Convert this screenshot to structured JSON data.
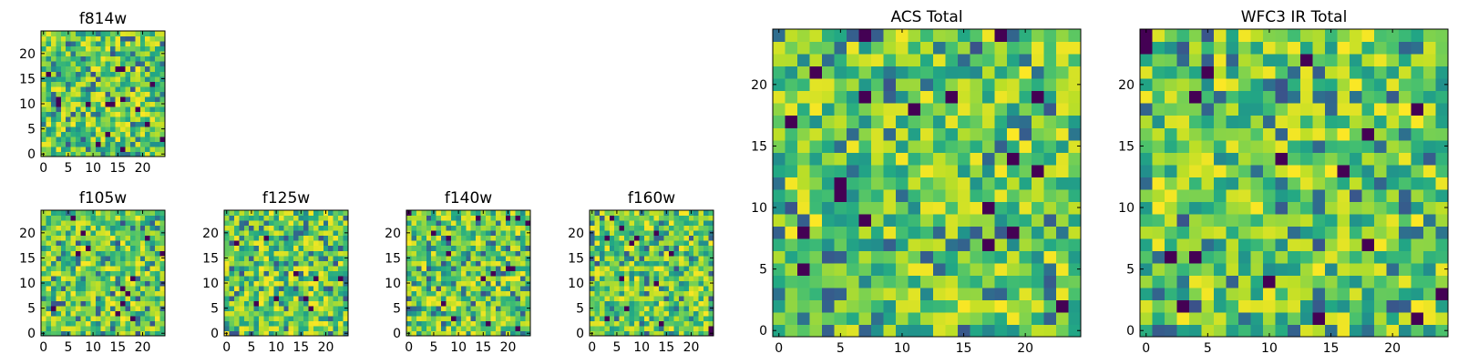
{
  "colormap": "viridis",
  "colors": {
    "axis": "#000000",
    "background": "#ffffff"
  },
  "chart_data": [
    {
      "id": "f814w",
      "type": "heatmap",
      "title": "f814w",
      "grid_shape": [
        25,
        25
      ],
      "xlim": [
        0,
        24
      ],
      "ylim": [
        0,
        24
      ],
      "xticks": [
        0,
        5,
        10,
        15,
        20
      ],
      "yticks": [
        0,
        5,
        10,
        15,
        20
      ],
      "xtick_labels": [
        "0",
        "5",
        "10",
        "15",
        "20"
      ],
      "ytick_labels": [
        "0",
        "5",
        "10",
        "15",
        "20"
      ],
      "grid": false,
      "seed": 17
    },
    {
      "id": "f105w",
      "type": "heatmap",
      "title": "f105w",
      "grid_shape": [
        25,
        25
      ],
      "xlim": [
        0,
        24
      ],
      "ylim": [
        0,
        24
      ],
      "xticks": [
        0,
        5,
        10,
        15,
        20
      ],
      "yticks": [
        0,
        5,
        10,
        15,
        20
      ],
      "xtick_labels": [
        "0",
        "5",
        "10",
        "15",
        "20"
      ],
      "ytick_labels": [
        "0",
        "5",
        "10",
        "15",
        "20"
      ],
      "grid": false,
      "seed": 29
    },
    {
      "id": "f125w",
      "type": "heatmap",
      "title": "f125w",
      "grid_shape": [
        25,
        25
      ],
      "xlim": [
        0,
        24
      ],
      "ylim": [
        0,
        24
      ],
      "xticks": [
        0,
        5,
        10,
        15,
        20
      ],
      "yticks": [
        0,
        5,
        10,
        15,
        20
      ],
      "xtick_labels": [
        "0",
        "5",
        "10",
        "15",
        "20"
      ],
      "ytick_labels": [
        "0",
        "5",
        "10",
        "15",
        "20"
      ],
      "grid": false,
      "seed": 43
    },
    {
      "id": "f140w",
      "type": "heatmap",
      "title": "f140w",
      "grid_shape": [
        25,
        25
      ],
      "xlim": [
        0,
        24
      ],
      "ylim": [
        0,
        24
      ],
      "xticks": [
        0,
        5,
        10,
        15,
        20
      ],
      "yticks": [
        0,
        5,
        10,
        15,
        20
      ],
      "xtick_labels": [
        "0",
        "5",
        "10",
        "15",
        "20"
      ],
      "ytick_labels": [
        "0",
        "5",
        "10",
        "15",
        "20"
      ],
      "grid": false,
      "seed": 61
    },
    {
      "id": "f160w",
      "type": "heatmap",
      "title": "f160w",
      "grid_shape": [
        25,
        25
      ],
      "xlim": [
        0,
        24
      ],
      "ylim": [
        0,
        24
      ],
      "xticks": [
        0,
        5,
        10,
        15,
        20
      ],
      "yticks": [
        0,
        5,
        10,
        15,
        20
      ],
      "xtick_labels": [
        "0",
        "5",
        "10",
        "15",
        "20"
      ],
      "ytick_labels": [
        "0",
        "5",
        "10",
        "15",
        "20"
      ],
      "grid": false,
      "seed": 83
    },
    {
      "id": "acs-total",
      "type": "heatmap",
      "title": "ACS Total",
      "grid_shape": [
        25,
        25
      ],
      "xlim": [
        0,
        24
      ],
      "ylim": [
        0,
        24
      ],
      "xticks": [
        0,
        5,
        10,
        15,
        20
      ],
      "yticks": [
        0,
        5,
        10,
        15,
        20
      ],
      "xtick_labels": [
        "0",
        "5",
        "10",
        "15",
        "20"
      ],
      "ytick_labels": [
        "0",
        "5",
        "10",
        "15",
        "20"
      ],
      "grid": false,
      "seed": 101
    },
    {
      "id": "wfc3-ir-total",
      "type": "heatmap",
      "title": "WFC3 IR Total",
      "grid_shape": [
        25,
        25
      ],
      "xlim": [
        0,
        24
      ],
      "ylim": [
        0,
        24
      ],
      "xticks": [
        0,
        5,
        10,
        15,
        20
      ],
      "yticks": [
        0,
        5,
        10,
        15,
        20
      ],
      "xtick_labels": [
        "0",
        "5",
        "10",
        "15",
        "20"
      ],
      "ytick_labels": [
        "0",
        "5",
        "10",
        "15",
        "20"
      ],
      "grid": false,
      "seed": 131
    }
  ]
}
